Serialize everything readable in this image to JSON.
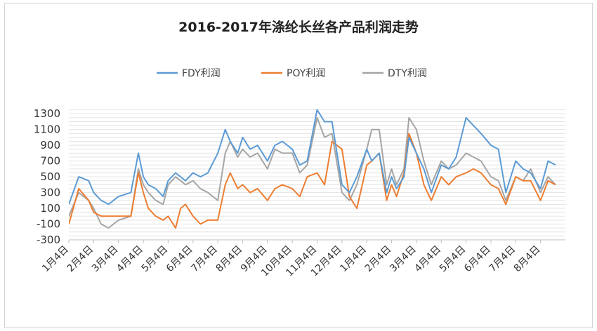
{
  "chart_data": {
    "type": "line",
    "title": "2016-2017年涤纶长丝各产品利润走势",
    "xlabel": "",
    "ylabel": "",
    "ylim": [
      -300,
      1400
    ],
    "yticks": [
      1300,
      1100,
      900,
      700,
      500,
      300,
      100,
      -100,
      -300
    ],
    "grid": "horizontal",
    "legend": "top",
    "x_labels": [
      "1月4日",
      "2月4日",
      "3月4日",
      "4月4日",
      "5月4日",
      "6月4日",
      "7月4日",
      "8月4日",
      "9月4日",
      "10月4日",
      "11月4日",
      "12月4日",
      "1月4日",
      "2月4日",
      "3月4日",
      "4月4日",
      "5月4日",
      "6月4日",
      "7月4日",
      "8月4日"
    ],
    "x": [
      0,
      0.4,
      0.8,
      1,
      1.3,
      1.6,
      2,
      2.5,
      2.8,
      3,
      3.2,
      3.5,
      3.8,
      4,
      4.3,
      4.5,
      4.7,
      5,
      5.3,
      5.6,
      6,
      6.3,
      6.5,
      6.8,
      7,
      7.3,
      7.6,
      8,
      8.3,
      8.6,
      9,
      9.3,
      9.6,
      10,
      10.3,
      10.6,
      11,
      11.3,
      11.6,
      12,
      12.2,
      12.5,
      12.8,
      13,
      13.2,
      13.5,
      13.7,
      14,
      14.3,
      14.6,
      15,
      15.3,
      15.6,
      16,
      16.3,
      16.6,
      17,
      17.3,
      17.6,
      18,
      18.3,
      18.6,
      19,
      19.3,
      19.6
    ],
    "series": [
      {
        "name": "FDY利润",
        "color": "#5b9bd5",
        "values": [
          150,
          500,
          450,
          300,
          200,
          150,
          250,
          300,
          800,
          500,
          400,
          350,
          250,
          450,
          550,
          500,
          450,
          550,
          500,
          550,
          800,
          1100,
          950,
          800,
          1000,
          850,
          900,
          700,
          900,
          950,
          850,
          650,
          700,
          1350,
          1200,
          1200,
          400,
          300,
          500,
          850,
          700,
          800,
          300,
          500,
          350,
          500,
          1000,
          800,
          600,
          300,
          650,
          600,
          750,
          1250,
          1150,
          1050,
          900,
          850,
          300,
          700,
          600,
          550,
          350,
          700,
          650
        ]
      },
      {
        "name": "POY利润",
        "color": "#ed7d31",
        "values": [
          -100,
          350,
          200,
          50,
          0,
          0,
          0,
          0,
          550,
          300,
          100,
          0,
          -50,
          0,
          -150,
          100,
          150,
          0,
          -100,
          -50,
          -50,
          400,
          550,
          350,
          400,
          300,
          350,
          200,
          350,
          400,
          350,
          250,
          500,
          550,
          400,
          950,
          850,
          250,
          100,
          650,
          700,
          800,
          200,
          400,
          250,
          550,
          1050,
          800,
          400,
          200,
          500,
          400,
          500,
          550,
          600,
          550,
          400,
          350,
          150,
          500,
          450,
          450,
          200,
          450,
          400
        ]
      },
      {
        "name": "DTY利润",
        "color": "#a5a5a5",
        "values": [
          0,
          300,
          200,
          100,
          -100,
          -150,
          -50,
          0,
          600,
          400,
          300,
          200,
          150,
          400,
          500,
          450,
          400,
          450,
          350,
          300,
          200,
          800,
          950,
          750,
          850,
          750,
          800,
          600,
          850,
          800,
          800,
          550,
          650,
          1250,
          1000,
          1050,
          300,
          200,
          400,
          850,
          1100,
          1100,
          400,
          600,
          400,
          600,
          1250,
          1100,
          700,
          400,
          700,
          600,
          650,
          800,
          750,
          700,
          500,
          450,
          200,
          500,
          450,
          600,
          300,
          500,
          400
        ]
      }
    ]
  }
}
